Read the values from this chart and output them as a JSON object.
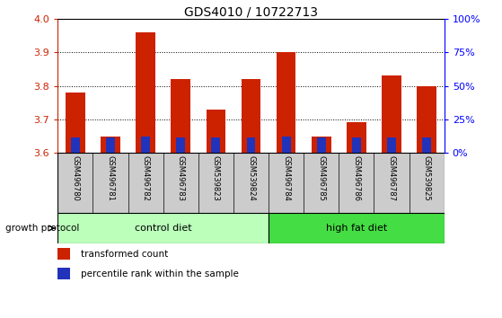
{
  "title": "GDS4010 / 10722713",
  "samples": [
    "GSM496780",
    "GSM496781",
    "GSM496782",
    "GSM496783",
    "GSM539823",
    "GSM539824",
    "GSM496784",
    "GSM496785",
    "GSM496786",
    "GSM496787",
    "GSM539825"
  ],
  "red_values": [
    3.78,
    3.648,
    3.96,
    3.82,
    3.73,
    3.82,
    3.9,
    3.648,
    3.69,
    3.83,
    3.8
  ],
  "blue_values": [
    3.645,
    3.645,
    3.648,
    3.645,
    3.645,
    3.645,
    3.648,
    3.645,
    3.645,
    3.645,
    3.645
  ],
  "ymin": 3.6,
  "ymax": 4.0,
  "yticks": [
    3.6,
    3.7,
    3.8,
    3.9,
    4.0
  ],
  "right_yticks": [
    0,
    25,
    50,
    75,
    100
  ],
  "right_yticklabels": [
    "0%",
    "25%",
    "50%",
    "75%",
    "100%"
  ],
  "control_samples": 6,
  "high_fat_samples": 5,
  "control_label": "control diet",
  "high_fat_label": "high fat diet",
  "growth_protocol_label": "growth protocol",
  "legend_red": "transformed count",
  "legend_blue": "percentile rank within the sample",
  "bar_width": 0.55,
  "blue_bar_width": 0.25,
  "red_color": "#cc2200",
  "blue_color": "#2233bb",
  "control_bg": "#bbffbb",
  "highfat_bg": "#44dd44",
  "xlabel_bg": "#cccccc",
  "grid_color": "#000000"
}
